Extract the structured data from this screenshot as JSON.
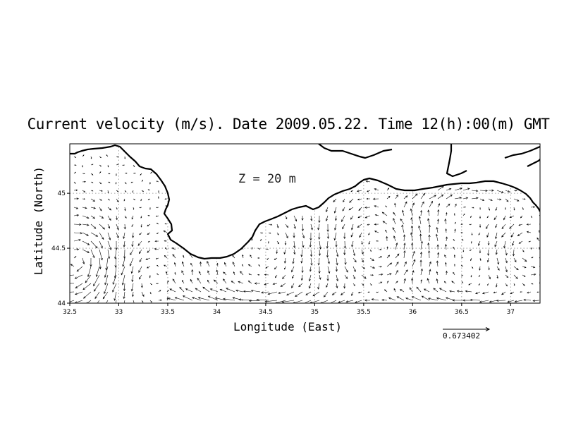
{
  "map": {
    "title": "Current velocity (m/s). Date 2009.05.22. Time 12(h):00(m) GMT",
    "depth_label": "Z = 20 m",
    "xlabel": "Longitude (East)",
    "ylabel": "Latitude (North)",
    "x_ticks": [
      "32.5",
      "33",
      "33.5",
      "34",
      "34.5",
      "35",
      "35.5",
      "36",
      "36.5",
      "37"
    ],
    "y_ticks": [
      "44",
      "44.5",
      "45"
    ],
    "xlim": [
      32.5,
      37.3
    ],
    "ylim": [
      44.0,
      45.45
    ],
    "reference_vector_label": "0.673402",
    "reference_vector_speed": 0.673402,
    "gridlines": "dotted",
    "colors": {
      "coast": "#000000",
      "vectors": "#000000",
      "grid": "#8c8c8c"
    }
  }
}
